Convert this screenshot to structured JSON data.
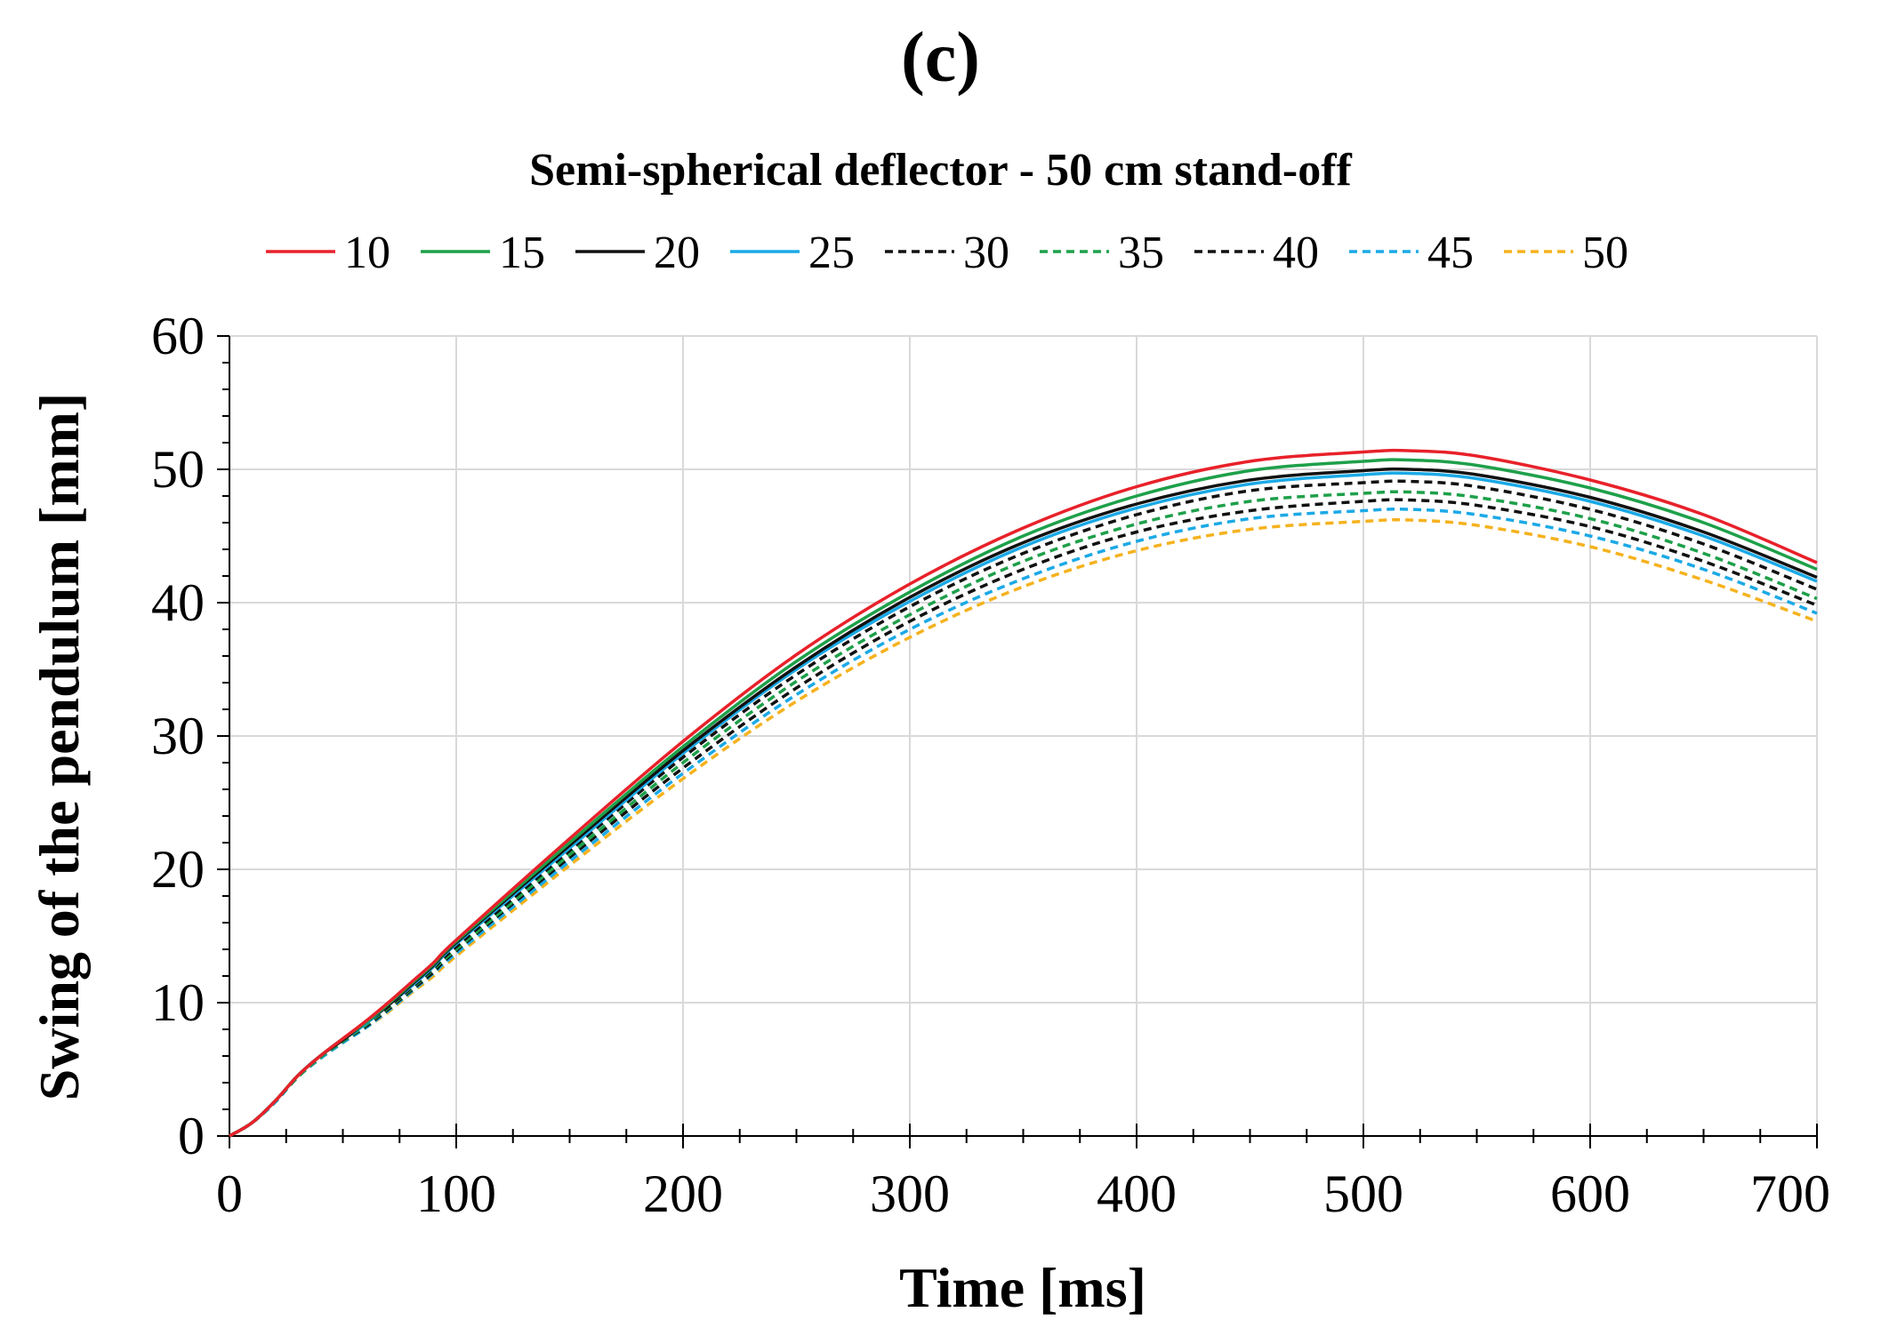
{
  "panel_label": "(c)",
  "chart_data": {
    "type": "line",
    "title": "Semi-spherical deflector - 50 cm stand-off",
    "xlabel": "Time [ms]",
    "ylabel": "Swing of the pendulum [mm]",
    "xlim": [
      0,
      700
    ],
    "ylim": [
      0,
      60
    ],
    "xticks": [
      0,
      100,
      200,
      300,
      400,
      500,
      600,
      700
    ],
    "yticks": [
      0,
      10,
      20,
      30,
      40,
      50,
      60
    ],
    "grid": true,
    "legend_position": "top",
    "x": [
      0,
      10,
      20,
      30,
      40,
      50,
      60,
      70,
      80,
      90,
      100,
      150,
      200,
      250,
      300,
      350,
      400,
      450,
      500,
      520,
      550,
      600,
      650,
      700
    ],
    "series": [
      {
        "name": "10",
        "color": "#e8212a",
        "dash": "solid",
        "values": [
          0,
          1.0,
          2.6,
          4.5,
          6.0,
          7.3,
          8.6,
          10.0,
          11.5,
          13.0,
          14.7,
          22.3,
          29.6,
          36.1,
          41.4,
          45.6,
          48.7,
          50.6,
          51.3,
          51.4,
          51.0,
          49.2,
          46.6,
          43.0
        ]
      },
      {
        "name": "15",
        "color": "#1ea04a",
        "dash": "solid",
        "values": [
          0,
          1.0,
          2.6,
          4.5,
          6.0,
          7.3,
          8.5,
          9.9,
          11.4,
          12.9,
          14.6,
          22.0,
          29.2,
          35.6,
          40.8,
          45.0,
          48.0,
          49.9,
          50.6,
          50.7,
          50.3,
          48.6,
          46.0,
          42.5
        ]
      },
      {
        "name": "20",
        "color": "#111111",
        "dash": "solid",
        "values": [
          0,
          1.0,
          2.6,
          4.5,
          6.0,
          7.2,
          8.5,
          9.8,
          11.3,
          12.8,
          14.5,
          21.8,
          28.9,
          35.2,
          40.4,
          44.5,
          47.4,
          49.2,
          49.9,
          50.0,
          49.6,
          47.9,
          45.3,
          41.9
        ]
      },
      {
        "name": "25",
        "color": "#1ba9e6",
        "dash": "solid",
        "values": [
          0,
          1.0,
          2.6,
          4.5,
          6.0,
          7.2,
          8.4,
          9.8,
          11.2,
          12.7,
          14.4,
          21.6,
          28.7,
          35.0,
          40.1,
          44.2,
          47.1,
          48.9,
          49.6,
          49.7,
          49.3,
          47.6,
          45.0,
          41.6
        ]
      },
      {
        "name": "30",
        "color": "#111111",
        "dash": "dashed",
        "values": [
          0,
          1.0,
          2.6,
          4.5,
          6.0,
          7.2,
          8.4,
          9.7,
          11.1,
          12.6,
          14.2,
          21.4,
          28.4,
          34.6,
          39.7,
          43.7,
          46.6,
          48.4,
          49.0,
          49.1,
          48.7,
          47.0,
          44.4,
          41.0
        ]
      },
      {
        "name": "35",
        "color": "#1ea04a",
        "dash": "dashed",
        "values": [
          0,
          1.0,
          2.6,
          4.4,
          5.9,
          7.1,
          8.3,
          9.6,
          11.0,
          12.5,
          14.0,
          21.1,
          28.0,
          34.1,
          39.1,
          43.1,
          45.9,
          47.6,
          48.2,
          48.3,
          47.9,
          46.3,
          43.7,
          40.3
        ]
      },
      {
        "name": "40",
        "color": "#111111",
        "dash": "dashed",
        "values": [
          0,
          1.0,
          2.6,
          4.4,
          5.9,
          7.1,
          8.2,
          9.5,
          10.9,
          12.3,
          13.9,
          20.9,
          27.6,
          33.6,
          38.6,
          42.5,
          45.3,
          46.9,
          47.6,
          47.7,
          47.3,
          45.7,
          43.1,
          39.8
        ]
      },
      {
        "name": "45",
        "color": "#1ba9e6",
        "dash": "dashed",
        "values": [
          0,
          1.0,
          2.5,
          4.4,
          5.8,
          7.0,
          8.1,
          9.4,
          10.8,
          12.2,
          13.7,
          20.6,
          27.2,
          33.1,
          38.0,
          41.8,
          44.6,
          46.3,
          46.9,
          47.0,
          46.6,
          45.0,
          42.5,
          39.2
        ]
      },
      {
        "name": "50",
        "color": "#f5b21e",
        "dash": "dashed",
        "values": [
          0,
          1.0,
          2.5,
          4.4,
          5.8,
          7.0,
          8.1,
          9.3,
          10.7,
          12.0,
          13.5,
          20.3,
          26.8,
          32.6,
          37.4,
          41.2,
          43.9,
          45.5,
          46.1,
          46.2,
          45.8,
          44.2,
          41.7,
          38.6
        ]
      }
    ]
  }
}
